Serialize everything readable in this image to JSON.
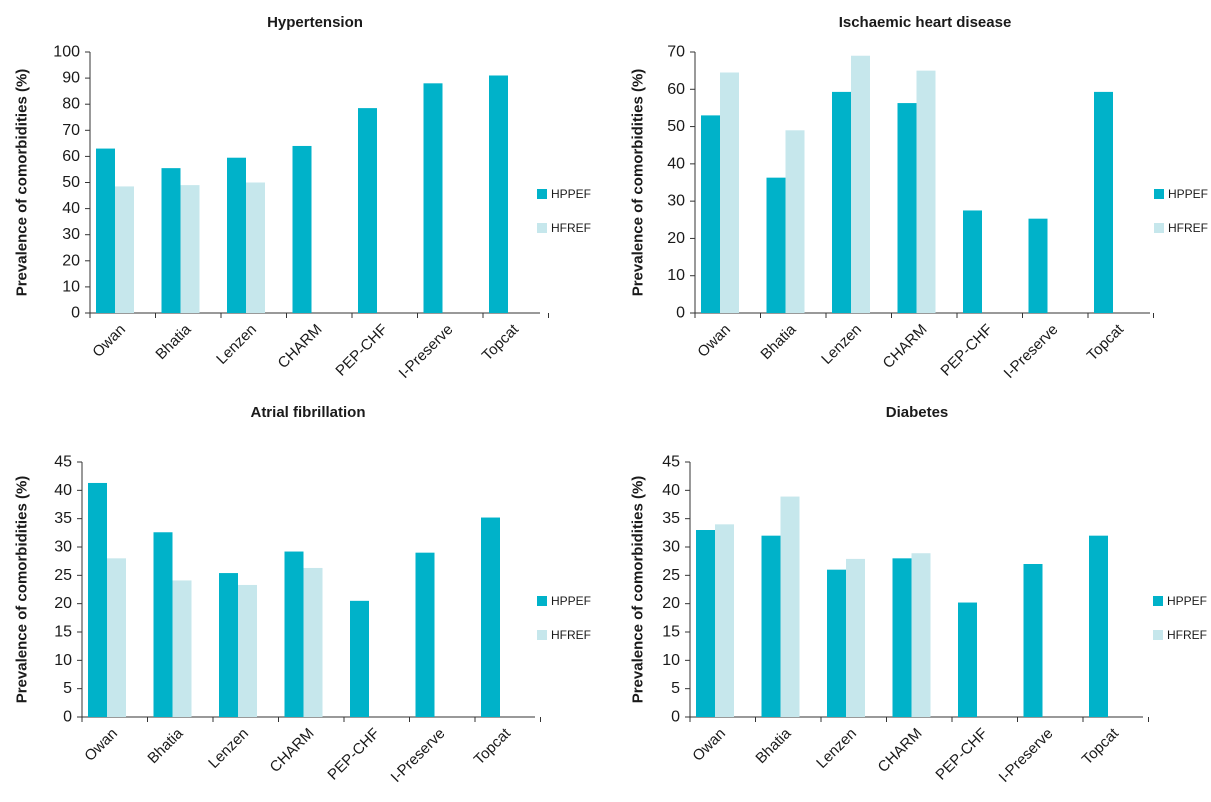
{
  "colors": {
    "hppef": "#00b2c9",
    "hfref": "#c6e7ec",
    "axis": "#333333"
  },
  "chart_data": [
    {
      "type": "bar",
      "title": "Hypertension",
      "ylabel": "Prevalence of comorbidities (%)",
      "xlabel": "",
      "categories": [
        "Owan",
        "Bhatia",
        "Lenzen",
        "CHARM",
        "PEP-CHF",
        "I-Preserve",
        "Topcat"
      ],
      "yticks": [
        "0",
        "10",
        "20",
        "30",
        "40",
        "50",
        "60",
        "70",
        "80",
        "90",
        "100"
      ],
      "ylim": [
        0,
        100
      ],
      "legend": [
        "HPPEF",
        "HFREF"
      ],
      "legend_position": "right",
      "grid": false,
      "series": [
        {
          "name": "HPPEF",
          "values": [
            63,
            55.5,
            59.5,
            64,
            78.5,
            88,
            91
          ]
        },
        {
          "name": "HFREF",
          "values": [
            48.5,
            49,
            50,
            null,
            null,
            null,
            null
          ]
        }
      ]
    },
    {
      "type": "bar",
      "title": "Ischaemic heart disease",
      "ylabel": "Prevalence of comorbidities (%)",
      "xlabel": "",
      "categories": [
        "Owan",
        "Bhatia",
        "Lenzen",
        "CHARM",
        "PEP-CHF",
        "I-Preserve",
        "Topcat"
      ],
      "yticks": [
        "0",
        "10",
        "20",
        "30",
        "40",
        "50",
        "60",
        "70"
      ],
      "ylim": [
        0,
        70
      ],
      "legend": [
        "HPPEF",
        "HFREF"
      ],
      "legend_position": "right",
      "grid": false,
      "series": [
        {
          "name": "HPPEF",
          "values": [
            53,
            36.3,
            59.3,
            56.3,
            27.5,
            25.3,
            59.3
          ]
        },
        {
          "name": "HFREF",
          "values": [
            64.5,
            49,
            69,
            65,
            null,
            null,
            null
          ]
        }
      ]
    },
    {
      "type": "bar",
      "title": "Atrial fibrillation",
      "ylabel": "Prevalence of comorbidities (%)",
      "xlabel": "",
      "categories": [
        "Owan",
        "Bhatia",
        "Lenzen",
        "CHARM",
        "PEP-CHF",
        "I-Preserve",
        "Topcat"
      ],
      "yticks": [
        "0",
        "5",
        "10",
        "15",
        "20",
        "25",
        "30",
        "35",
        "40",
        "45"
      ],
      "ylim": [
        0,
        45
      ],
      "legend": [
        "HPPEF",
        "HFREF"
      ],
      "legend_position": "right",
      "grid": false,
      "series": [
        {
          "name": "HPPEF",
          "values": [
            41.3,
            32.6,
            25.4,
            29.2,
            20.5,
            29,
            35.2
          ]
        },
        {
          "name": "HFREF",
          "values": [
            28,
            24.1,
            23.3,
            26.3,
            null,
            null,
            null
          ]
        }
      ]
    },
    {
      "type": "bar",
      "title": "Diabetes",
      "ylabel": "Prevalence of comorbidities (%)",
      "xlabel": "",
      "categories": [
        "Owan",
        "Bhatia",
        "Lenzen",
        "CHARM",
        "PEP-CHF",
        "I-Preserve",
        "Topcat"
      ],
      "yticks": [
        "0",
        "5",
        "10",
        "15",
        "20",
        "25",
        "30",
        "35",
        "40",
        "45"
      ],
      "ylim": [
        0,
        45
      ],
      "legend": [
        "HPPEF",
        "HFREF"
      ],
      "legend_position": "right",
      "grid": false,
      "series": [
        {
          "name": "HPPEF",
          "values": [
            33,
            32,
            26,
            28,
            20.2,
            27,
            32
          ]
        },
        {
          "name": "HFREF",
          "values": [
            34,
            38.9,
            27.9,
            28.9,
            null,
            null,
            null
          ]
        }
      ]
    }
  ]
}
